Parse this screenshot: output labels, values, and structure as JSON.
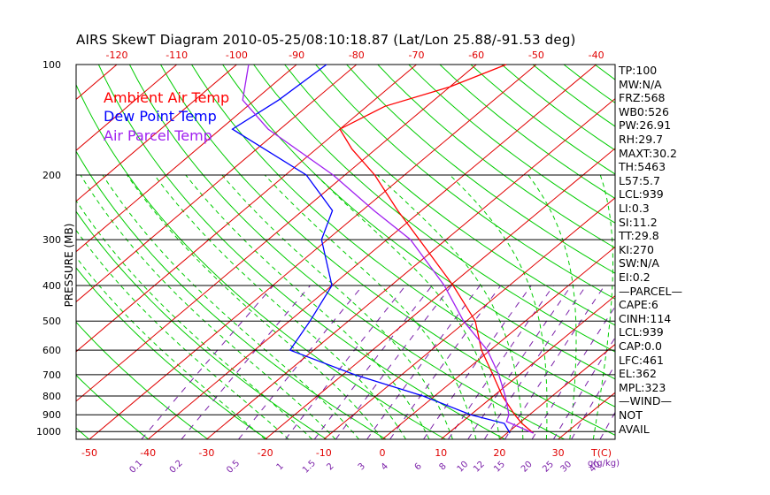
{
  "title": "AIRS SkewT Diagram 2010-05-25/08:10:18.87 (Lat/Lon 25.88/-91.53 deg)",
  "legend": [
    {
      "label": "Ambient Air Temp",
      "color": "#ff0000"
    },
    {
      "label": "Dew Point Temp",
      "color": "#0000ff"
    },
    {
      "label": "Air Parcel Temp",
      "color": "#a020f0"
    }
  ],
  "chart_data": {
    "type": "line",
    "ylabel": "PRESSURE (MB)",
    "xlabel": "T(C)",
    "mixing_ratio_label": "g(g/kg)",
    "pressure_range": [
      1050,
      100
    ],
    "temperature_range_bottom": [
      -55,
      40
    ],
    "temperature_range_top": [
      -125,
      -38
    ],
    "y_scale": "log",
    "pressure_ticks": [
      1000,
      900,
      800,
      700,
      600,
      500,
      400,
      300,
      200,
      100
    ],
    "bottom_temperature_ticks": [
      -50,
      -40,
      -30,
      -20,
      -10,
      0,
      10,
      20,
      30
    ],
    "top_temperature_ticks": [
      -120,
      -110,
      -100,
      -90,
      -80,
      -70,
      -60,
      -50,
      -40
    ],
    "mixing_ratio_ticks": [
      "0.1",
      "0.2",
      "0.5",
      "1",
      "1.5",
      "2",
      "3",
      "4",
      "6",
      "8",
      "10",
      "12",
      "15",
      "20",
      "25",
      "30",
      "40"
    ],
    "series": [
      {
        "name": "Ambient Air Temp",
        "color": "#ff0000",
        "points": [
          {
            "p": 1010,
            "t": 24.5
          },
          {
            "p": 950,
            "t": 20.5
          },
          {
            "p": 900,
            "t": 17.5
          },
          {
            "p": 800,
            "t": 11.5
          },
          {
            "p": 700,
            "t": 5.5
          },
          {
            "p": 600,
            "t": -1.5
          },
          {
            "p": 500,
            "t": -8.5
          },
          {
            "p": 400,
            "t": -19.5
          },
          {
            "p": 300,
            "t": -34.5
          },
          {
            "p": 250,
            "t": -44.0
          },
          {
            "p": 200,
            "t": -55.0
          },
          {
            "p": 170,
            "t": -64.0
          },
          {
            "p": 150,
            "t": -70.0
          },
          {
            "p": 130,
            "t": -67.0
          },
          {
            "p": 115,
            "t": -60.0
          },
          {
            "p": 100,
            "t": -55.0
          }
        ]
      },
      {
        "name": "Dew Point Temp",
        "color": "#0000ff",
        "points": [
          {
            "p": 1010,
            "t": 20.5
          },
          {
            "p": 950,
            "t": 17.5
          },
          {
            "p": 900,
            "t": 10.0
          },
          {
            "p": 800,
            "t": -2.0
          },
          {
            "p": 700,
            "t": -18.0
          },
          {
            "p": 600,
            "t": -34.0
          },
          {
            "p": 500,
            "t": -36.5
          },
          {
            "p": 400,
            "t": -40.0
          },
          {
            "p": 300,
            "t": -51.0
          },
          {
            "p": 250,
            "t": -55.0
          },
          {
            "p": 200,
            "t": -66.5
          },
          {
            "p": 150,
            "t": -88.0
          },
          {
            "p": 125,
            "t": -86.0
          },
          {
            "p": 100,
            "t": -85.0
          }
        ]
      },
      {
        "name": "Air Parcel Temp",
        "color": "#a020f0",
        "points": [
          {
            "p": 1010,
            "t": 24.5
          },
          {
            "p": 939,
            "t": 17.5
          },
          {
            "p": 900,
            "t": 16.5
          },
          {
            "p": 800,
            "t": 12.0
          },
          {
            "p": 700,
            "t": 6.5
          },
          {
            "p": 600,
            "t": -0.5
          },
          {
            "p": 500,
            "t": -10.5
          },
          {
            "p": 400,
            "t": -21.0
          },
          {
            "p": 300,
            "t": -36.0
          },
          {
            "p": 250,
            "t": -48.0
          },
          {
            "p": 200,
            "t": -62.0
          },
          {
            "p": 150,
            "t": -82.0
          },
          {
            "p": 125,
            "t": -92.0
          },
          {
            "p": 100,
            "t": -98.0
          }
        ]
      }
    ],
    "indices": [
      "TP:100",
      "MW:N/A",
      "FRZ:568",
      "WB0:526",
      "PW:26.91",
      "RH:29.7",
      "MAXT:30.2",
      "TH:5463",
      "L57:5.7",
      "LCL:939",
      "LI:0.3",
      "SI:11.2",
      "TT:29.8",
      "KI:270",
      "SW:N/A",
      "EI:0.2",
      "—PARCEL—",
      "CAPE:6",
      "CINH:114",
      "LCL:939",
      "CAP:0.0",
      "LFC:461",
      "EL:362",
      "MPL:323",
      "—WIND—",
      "NOT",
      "AVAIL"
    ],
    "grid": true
  }
}
